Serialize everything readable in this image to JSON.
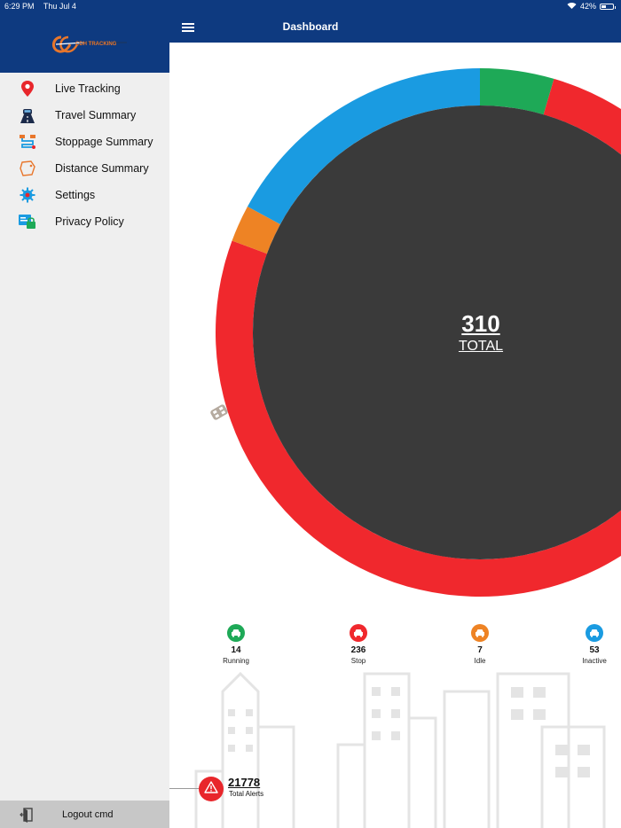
{
  "status_bar": {
    "time": "6:29 PM",
    "date": "Thu Jul 4",
    "battery": "42%",
    "battery_fraction": 0.42
  },
  "header": {
    "title": "Dashboard"
  },
  "sidebar": {
    "logo_text": "CDH TRACKING",
    "items": [
      {
        "label": "Live Tracking",
        "icon": "location-pin-icon"
      },
      {
        "label": "Travel Summary",
        "icon": "car-road-icon"
      },
      {
        "label": "Stoppage Summary",
        "icon": "route-icon"
      },
      {
        "label": "Distance Summary",
        "icon": "map-icon"
      },
      {
        "label": "Settings",
        "icon": "gear-icon"
      },
      {
        "label": "Privacy Policy",
        "icon": "privacy-lock-icon"
      }
    ],
    "logout_label": "Logout cmd"
  },
  "summary": {
    "total": "310",
    "total_label": "TOTAL",
    "categories": [
      {
        "name": "Running",
        "count": "14",
        "color": "#1ea957"
      },
      {
        "name": "Stop",
        "count": "236",
        "color": "#f0282d"
      },
      {
        "name": "Idle",
        "count": "7",
        "color": "#ee8324"
      },
      {
        "name": "Inactive",
        "count": "53",
        "color": "#1a9be1"
      }
    ]
  },
  "alerts": {
    "count": "21778",
    "label": "Total Alerts"
  },
  "colors": {
    "primary": "#0e3a80",
    "donut_center": "#3a3a3a",
    "alert": "#e8262b"
  }
}
